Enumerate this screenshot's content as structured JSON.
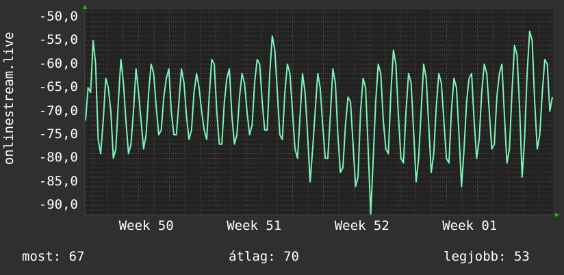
{
  "chart_data": {
    "type": "line",
    "title": "",
    "ylabel": "onlinestream.live",
    "xlabel": "",
    "ylim": [
      -92,
      -48.4
    ],
    "yticks": [
      -50,
      -55,
      -60,
      -65,
      -70,
      -75,
      -80,
      -85,
      -90
    ],
    "ytick_labels": [
      "-50,0",
      "-55,0",
      "-60,0",
      "-65,0",
      "-70,0",
      "-75,0",
      "-80,0",
      "-85,0",
      "-90,0"
    ],
    "xtick_labels": [
      "Week 50",
      "Week 51",
      "Week 52",
      "Week 01"
    ],
    "grid": true,
    "line_color": "#7cf5b8",
    "background": "#222222",
    "series": [
      {
        "values": [
          -72,
          -65,
          -66,
          -55,
          -60,
          -76,
          -79,
          -72,
          -63,
          -65,
          -70,
          -80,
          -78,
          -68,
          -59,
          -64,
          -72,
          -79,
          -77,
          -70,
          -61,
          -66,
          -72,
          -78,
          -75,
          -66,
          -60,
          -62,
          -69,
          -75,
          -74,
          -67,
          -63,
          -61,
          -70,
          -75,
          -75,
          -68,
          -61,
          -64,
          -71,
          -76,
          -74,
          -66,
          -62,
          -65,
          -70,
          -74,
          -76,
          -67,
          -59,
          -60,
          -70,
          -77,
          -77,
          -68,
          -63,
          -61,
          -71,
          -77,
          -75,
          -67,
          -62,
          -64,
          -70,
          -75,
          -73,
          -64,
          -59,
          -60,
          -68,
          -74,
          -74,
          -62,
          -54,
          -57,
          -66,
          -75,
          -76,
          -66,
          -60,
          -62,
          -70,
          -78,
          -80,
          -71,
          -62,
          -66,
          -75,
          -85,
          -78,
          -70,
          -62,
          -65,
          -73,
          -80,
          -80,
          -71,
          -61,
          -64,
          -75,
          -83,
          -82,
          -73,
          -67,
          -68,
          -77,
          -86,
          -84,
          -70,
          -63,
          -65,
          -78,
          -92,
          -80,
          -68,
          -60,
          -62,
          -72,
          -78,
          -79,
          -66,
          -57,
          -60,
          -71,
          -80,
          -81,
          -70,
          -62,
          -64,
          -74,
          -85,
          -80,
          -70,
          -60,
          -63,
          -73,
          -83,
          -79,
          -69,
          -62,
          -64,
          -72,
          -80,
          -81,
          -70,
          -63,
          -65,
          -75,
          -86,
          -78,
          -68,
          -63,
          -62,
          -72,
          -80,
          -76,
          -66,
          -60,
          -62,
          -70,
          -78,
          -77,
          -67,
          -62,
          -60,
          -71,
          -81,
          -78,
          -66,
          -56,
          -58,
          -69,
          -84,
          -76,
          -62,
          -53,
          -55,
          -68,
          -78,
          -75,
          -66,
          -59,
          -60,
          -70,
          -67
        ]
      }
    ]
  },
  "footer": {
    "current": "most: 67",
    "average": "átlag: 70",
    "best": "legjobb: 53"
  }
}
